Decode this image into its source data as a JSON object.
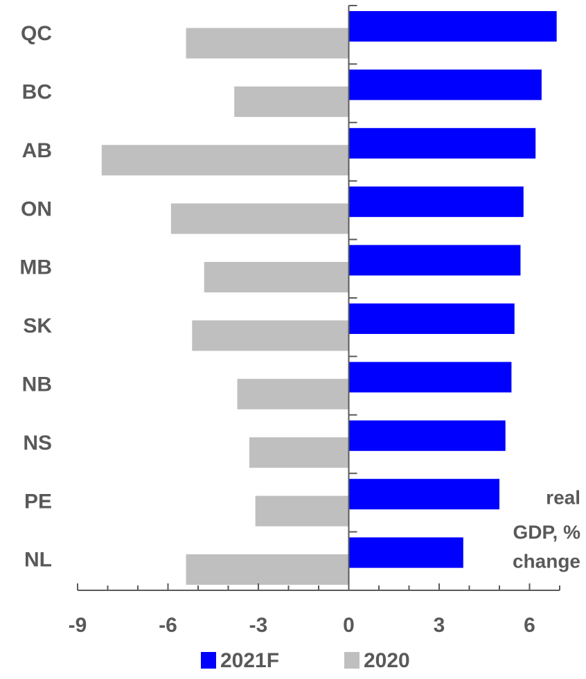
{
  "chart_data": {
    "type": "bar",
    "orientation": "horizontal",
    "categories": [
      "QC",
      "BC",
      "AB",
      "ON",
      "MB",
      "SK",
      "NB",
      "NS",
      "PE",
      "NL"
    ],
    "series": [
      {
        "name": "2021F",
        "color": "#0000ff",
        "values": [
          6.9,
          6.4,
          6.2,
          5.8,
          5.7,
          5.5,
          5.4,
          5.2,
          5.0,
          3.8
        ]
      },
      {
        "name": "2020",
        "color": "#bfbfbf",
        "values": [
          -5.4,
          -3.8,
          -8.2,
          -5.9,
          -4.8,
          -5.2,
          -3.7,
          -3.3,
          -3.1,
          -5.4
        ]
      }
    ],
    "xlim": [
      -9,
      7
    ],
    "xticks": [
      -9,
      -6,
      -3,
      0,
      3,
      6
    ],
    "xminorticks": [
      -9,
      -8,
      -7,
      -6,
      -5,
      -4,
      -3,
      -2,
      -1,
      0,
      1,
      2,
      3,
      4,
      5,
      6,
      7
    ],
    "axis_label": [
      "real",
      "GDP, %",
      "change"
    ],
    "legend": "bottom",
    "grid": false
  }
}
